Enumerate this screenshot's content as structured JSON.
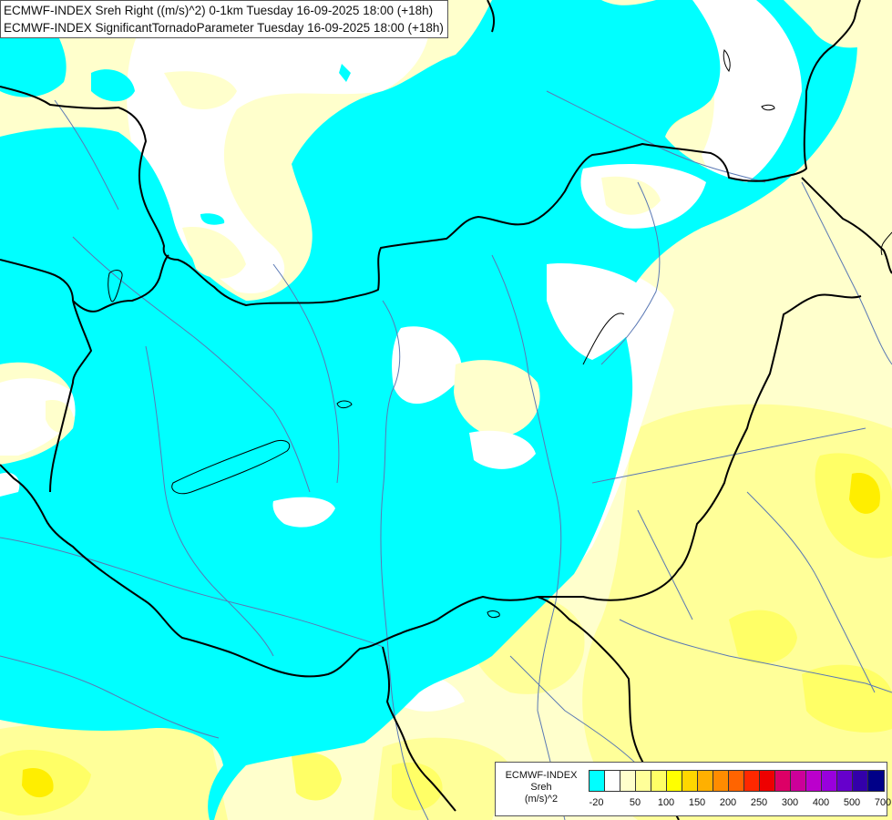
{
  "map_title": {
    "line1": "ECMWF-INDEX Sreh Right ((m/s)^2) 0-1km Tuesday 16-09-2025 18:00 (+18h)",
    "line2": "ECMWF-INDEX SignificantTornadoParameter Tuesday 16-09-2025 18:00 (+18h)"
  },
  "legend": {
    "title_line1": "ECMWF-INDEX",
    "title_line2": "Sreh",
    "title_line3": "(m/s)^2",
    "colors": [
      "#00ffff",
      "#ffffff",
      "#ffffcc",
      "#ffff99",
      "#ffff66",
      "#ffff00",
      "#ffd700",
      "#ffb000",
      "#ff8c00",
      "#ff6400",
      "#ff2800",
      "#ee0000",
      "#dd0066",
      "#cc0099",
      "#bb00cc",
      "#9900dd",
      "#6600cc",
      "#3300aa",
      "#000088"
    ],
    "ticks": [
      "-20",
      "50",
      "100",
      "150",
      "200",
      "250",
      "300",
      "400",
      "500",
      "700"
    ]
  },
  "colors": {
    "cyan_region": "#00ffff",
    "pale_yellow": "#ffffcc",
    "light_yellow": "#ffff99",
    "yellow": "#ffff66",
    "bright_yellow": "#ffff00",
    "border_line": "#000000",
    "river_line": "#5a78b4"
  }
}
